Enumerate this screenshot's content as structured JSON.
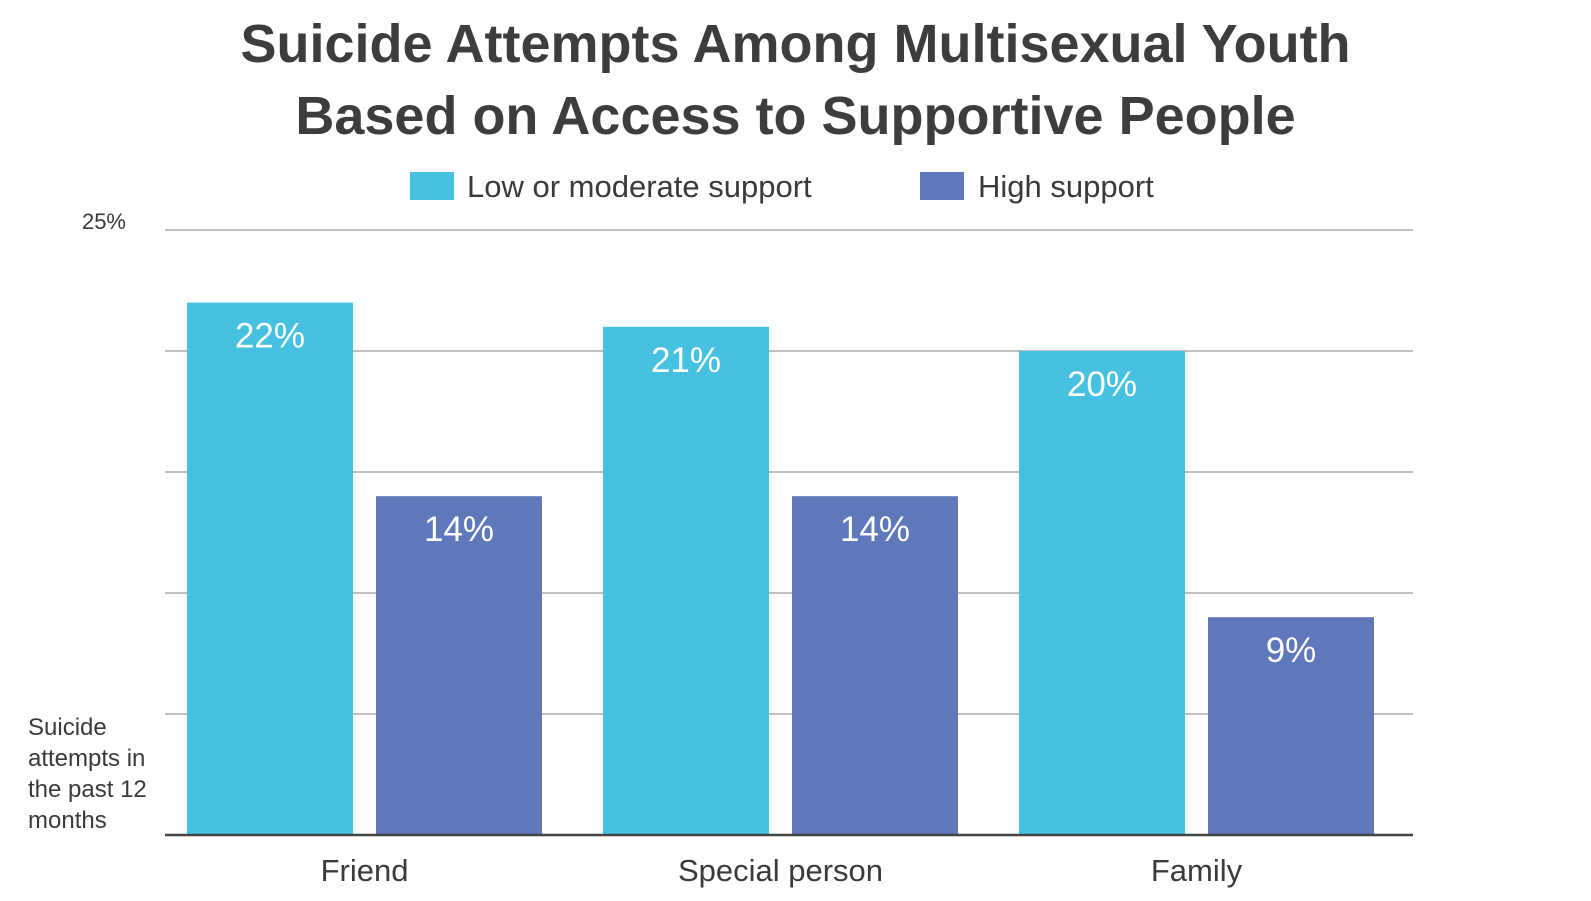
{
  "chart_data": {
    "type": "bar",
    "title_lines": [
      "Suicide Attempts Among Multisexual Youth",
      "Based on Access to Supportive People"
    ],
    "categories": [
      "Friend",
      "Special person",
      "Family"
    ],
    "series": [
      {
        "name": "Low or moderate support",
        "color": "#47c1e2",
        "values": [
          22,
          21,
          20
        ],
        "labels": [
          "22%",
          "21%",
          "20%"
        ]
      },
      {
        "name": "High support",
        "color": "#5f77bb",
        "values": [
          14,
          14,
          9
        ],
        "labels": [
          "14%",
          "14%",
          "9%"
        ]
      }
    ],
    "ylim": [
      0,
      25
    ],
    "ytick_labels": [
      {
        "value": 25,
        "label": "25%"
      }
    ],
    "ylabel": "Suicide attempts in the past 12 months",
    "grid": true,
    "legend_position": "top-center"
  }
}
